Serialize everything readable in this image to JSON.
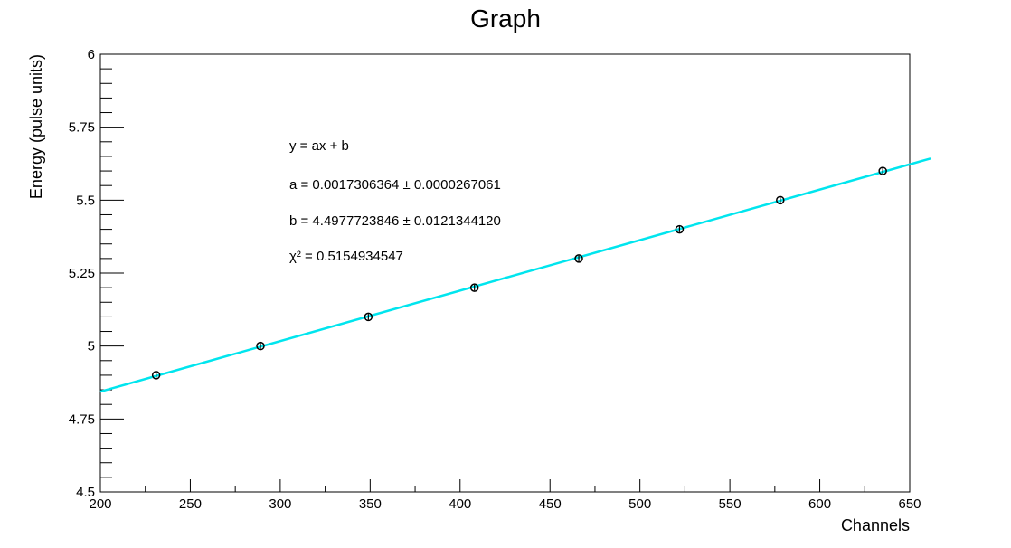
{
  "chart_data": {
    "type": "scatter",
    "title": "Graph",
    "xlabel": "Channels",
    "ylabel": "Energy (pulse units)",
    "xlim": [
      200,
      650
    ],
    "ylim": [
      4.5,
      6
    ],
    "x_ticks": [
      "200",
      "250",
      "300",
      "350",
      "400",
      "450",
      "500",
      "550",
      "600",
      "650"
    ],
    "y_ticks": [
      "4.5",
      "4.75",
      "5",
      "5.25",
      "5.5",
      "5.75",
      "6"
    ],
    "series": [
      {
        "points": [
          {
            "x": 231,
            "y": 4.9
          },
          {
            "x": 289,
            "y": 5.0
          },
          {
            "x": 349,
            "y": 5.1
          },
          {
            "x": 408,
            "y": 5.2
          },
          {
            "x": 466,
            "y": 5.3
          },
          {
            "x": 522,
            "y": 5.4
          },
          {
            "x": 578,
            "y": 5.5
          },
          {
            "x": 635,
            "y": 5.6
          }
        ],
        "error": 0.01,
        "color": "#000000"
      }
    ],
    "fit": {
      "slope": 0.0017306364,
      "intercept": 4.4977723846,
      "x_range": [
        200,
        650
      ],
      "color": "#00e5ee"
    },
    "annotations": [
      {
        "key": "eq",
        "text": "y = ax + b"
      },
      {
        "key": "a",
        "text": "a = 0.0017306364 ± 0.0000267061"
      },
      {
        "key": "b",
        "text": "b = 4.4977723846 ± 0.0121344120"
      },
      {
        "key": "chi",
        "text": "χ² = 0.5154934547"
      }
    ],
    "grid": false,
    "frame_color": "#000000"
  }
}
